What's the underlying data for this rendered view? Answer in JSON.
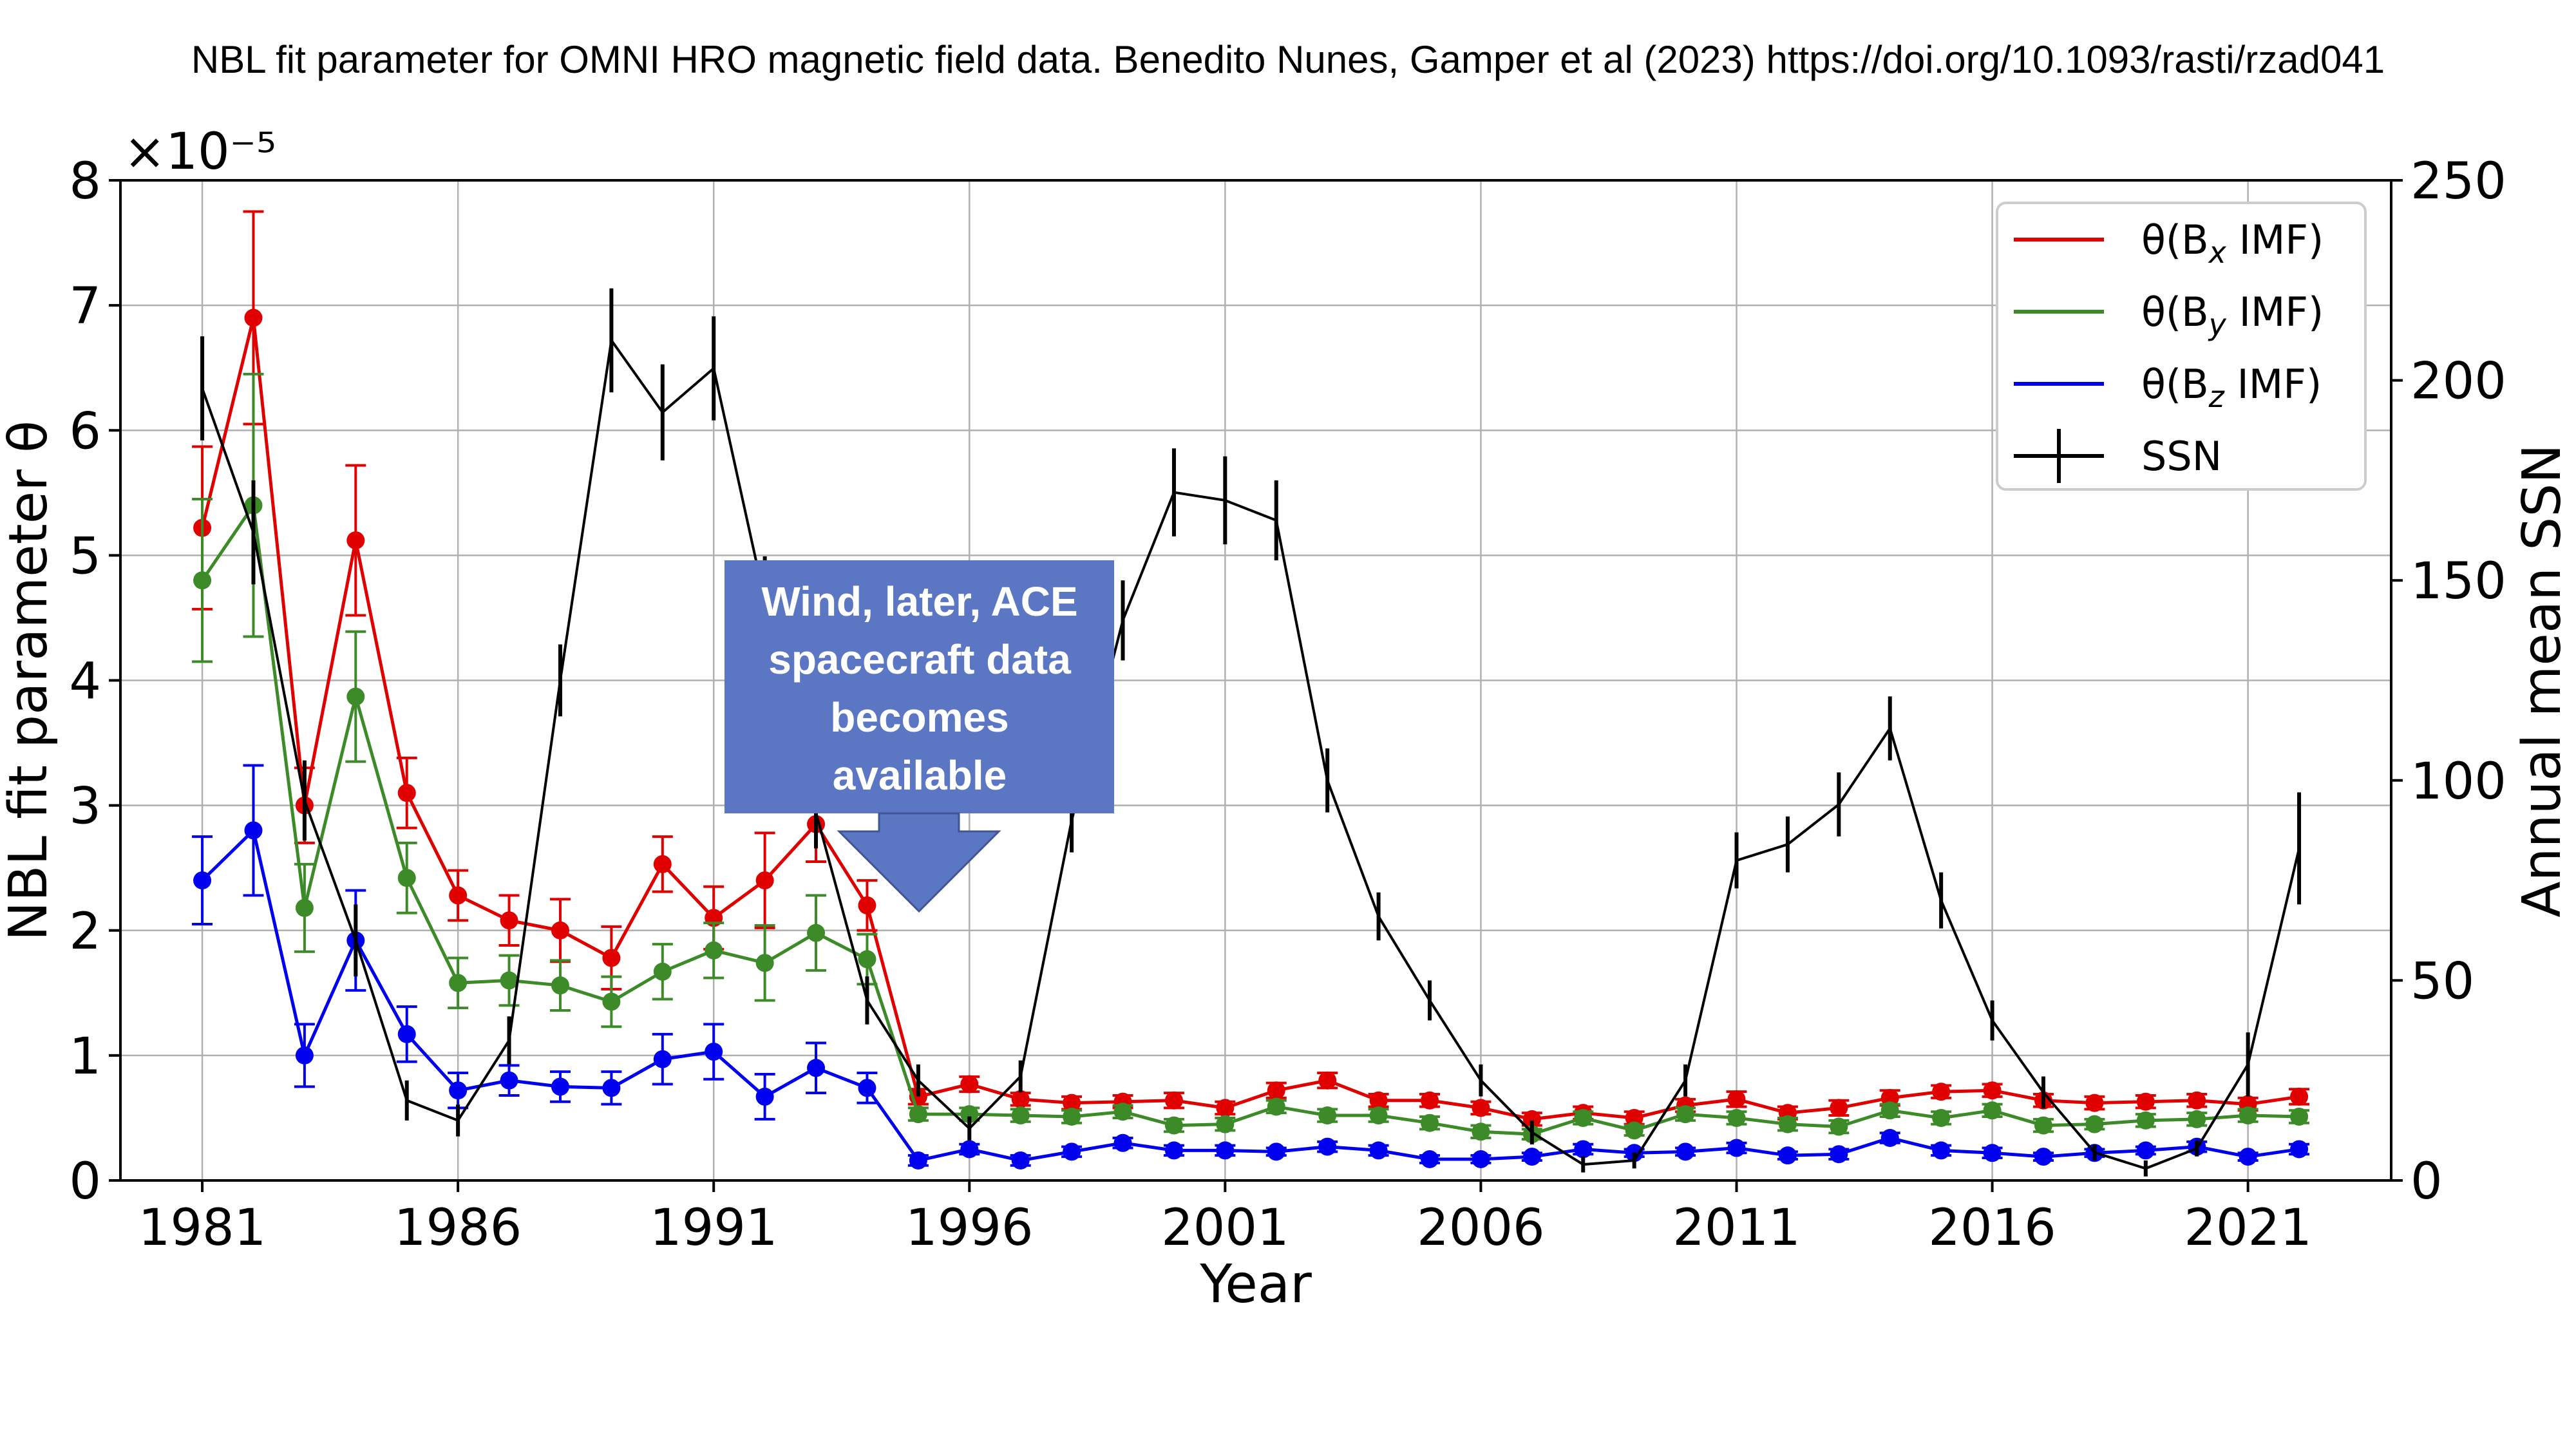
{
  "page_title": "NBL fit parameter for OMNI HRO magnetic field data. Benedito Nunes,  Gamper et al (2023) https://doi.org/10.1093/rasti/rzad041",
  "chart_data": {
    "type": "line",
    "xlabel": "Year",
    "ylabel": "NBL fit parameter θ",
    "y2label": "Annual mean SSN",
    "y_multiplier": "×10⁻⁵",
    "xlim": [
      1979.4,
      2023.8
    ],
    "ylim": [
      0,
      8
    ],
    "y2lim": [
      0,
      250
    ],
    "xticks": [
      1981,
      1986,
      1991,
      1996,
      2001,
      2006,
      2011,
      2016,
      2021
    ],
    "xtick_labels": [
      "1981",
      "1986",
      "1991",
      "1996",
      "2001",
      "2006",
      "2011",
      "2016",
      "2021"
    ],
    "yticks": [
      0,
      1,
      2,
      3,
      4,
      5,
      6,
      7,
      8
    ],
    "ytick_labels": [
      "0",
      "1",
      "2",
      "3",
      "4",
      "5",
      "6",
      "7",
      "8"
    ],
    "y2ticks": [
      0,
      50,
      100,
      150,
      200,
      250
    ],
    "y2tick_labels": [
      "0",
      "50",
      "100",
      "150",
      "200",
      "250"
    ],
    "grid": true,
    "legend_position": "top-right",
    "x": [
      1981,
      1982,
      1983,
      1984,
      1985,
      1986,
      1987,
      1988,
      1989,
      1990,
      1991,
      1992,
      1993,
      1994,
      1995,
      1996,
      1997,
      1998,
      1999,
      2000,
      2001,
      2002,
      2003,
      2004,
      2005,
      2006,
      2007,
      2008,
      2009,
      2010,
      2011,
      2012,
      2013,
      2014,
      2015,
      2016,
      2017,
      2018,
      2019,
      2020,
      2021,
      2022
    ],
    "series": [
      {
        "name": "θ(Bx IMF)",
        "legend_label": "θ(B",
        "legend_sub": "x",
        "legend_suffix": " IMF)",
        "color": "#e00000",
        "axis": "left",
        "values": [
          5.22,
          6.9,
          3.0,
          5.12,
          3.1,
          2.28,
          2.08,
          2.0,
          1.78,
          2.53,
          2.1,
          2.4,
          2.85,
          2.2,
          0.67,
          0.77,
          0.65,
          0.62,
          0.63,
          0.64,
          0.58,
          0.72,
          0.8,
          0.64,
          0.64,
          0.58,
          0.49,
          0.54,
          0.5,
          0.6,
          0.65,
          0.54,
          0.58,
          0.66,
          0.71,
          0.72,
          0.64,
          0.62,
          0.63,
          0.64,
          0.61,
          0.67
        ],
        "errors": [
          0.65,
          0.85,
          0.3,
          0.6,
          0.28,
          0.2,
          0.2,
          0.25,
          0.25,
          0.22,
          0.25,
          0.38,
          0.3,
          0.2,
          0.06,
          0.06,
          0.05,
          0.05,
          0.05,
          0.06,
          0.05,
          0.06,
          0.06,
          0.05,
          0.05,
          0.05,
          0.05,
          0.05,
          0.05,
          0.05,
          0.06,
          0.05,
          0.06,
          0.06,
          0.05,
          0.05,
          0.05,
          0.05,
          0.05,
          0.05,
          0.05,
          0.06
        ]
      },
      {
        "name": "θ(By IMF)",
        "legend_label": "θ(B",
        "legend_sub": "y",
        "legend_suffix": " IMF)",
        "color": "#3c8a28",
        "axis": "left",
        "values": [
          4.8,
          5.4,
          2.18,
          3.87,
          2.42,
          1.58,
          1.6,
          1.56,
          1.43,
          1.67,
          1.84,
          1.74,
          1.98,
          1.77,
          0.53,
          0.53,
          0.52,
          0.51,
          0.55,
          0.44,
          0.45,
          0.59,
          0.52,
          0.52,
          0.46,
          0.39,
          0.37,
          0.5,
          0.4,
          0.53,
          0.5,
          0.45,
          0.43,
          0.56,
          0.5,
          0.56,
          0.44,
          0.45,
          0.48,
          0.49,
          0.52,
          0.51
        ],
        "errors": [
          0.65,
          1.05,
          0.35,
          0.52,
          0.28,
          0.2,
          0.2,
          0.2,
          0.2,
          0.22,
          0.22,
          0.3,
          0.3,
          0.2,
          0.05,
          0.05,
          0.05,
          0.05,
          0.05,
          0.05,
          0.05,
          0.05,
          0.05,
          0.05,
          0.05,
          0.05,
          0.04,
          0.05,
          0.04,
          0.05,
          0.05,
          0.05,
          0.05,
          0.05,
          0.05,
          0.05,
          0.05,
          0.04,
          0.05,
          0.05,
          0.05,
          0.05
        ]
      },
      {
        "name": "θ(Bz IMF)",
        "legend_label": "θ(B",
        "legend_sub": "z",
        "legend_suffix": " IMF)",
        "color": "#0000ee",
        "axis": "left",
        "values": [
          2.4,
          2.8,
          1.0,
          1.92,
          1.17,
          0.72,
          0.8,
          0.75,
          0.74,
          0.97,
          1.03,
          0.67,
          0.9,
          0.74,
          0.16,
          0.25,
          0.16,
          0.23,
          0.3,
          0.24,
          0.24,
          0.23,
          0.27,
          0.24,
          0.17,
          0.17,
          0.19,
          0.25,
          0.22,
          0.23,
          0.26,
          0.2,
          0.21,
          0.34,
          0.24,
          0.22,
          0.19,
          0.22,
          0.24,
          0.27,
          0.19,
          0.25
        ],
        "errors": [
          0.35,
          0.52,
          0.25,
          0.4,
          0.22,
          0.14,
          0.12,
          0.12,
          0.13,
          0.2,
          0.22,
          0.18,
          0.2,
          0.12,
          0.04,
          0.04,
          0.04,
          0.04,
          0.04,
          0.04,
          0.04,
          0.03,
          0.04,
          0.04,
          0.03,
          0.03,
          0.03,
          0.04,
          0.03,
          0.03,
          0.04,
          0.03,
          0.04,
          0.04,
          0.04,
          0.04,
          0.03,
          0.03,
          0.03,
          0.04,
          0.03,
          0.04
        ]
      },
      {
        "name": "SSN",
        "legend_label": "SSN",
        "legend_sub": "",
        "legend_suffix": "",
        "color": "#000000",
        "axis": "right",
        "markers": false,
        "values": [
          198,
          162,
          95,
          60,
          20,
          15,
          35,
          125,
          210,
          192,
          203,
          145,
          92,
          45,
          25,
          13,
          26,
          90,
          140,
          172,
          170,
          165,
          100,
          66,
          45,
          25,
          12,
          4,
          5,
          25,
          80,
          84,
          94,
          113,
          70,
          40,
          22,
          7,
          3,
          8,
          29,
          83
        ],
        "errors": [
          13,
          13,
          10,
          9,
          5,
          4,
          6,
          9,
          13,
          12,
          13,
          11,
          9,
          6,
          4,
          3,
          4,
          8,
          10,
          11,
          11,
          10,
          8,
          6,
          5,
          4,
          3,
          2,
          2,
          4,
          7,
          7,
          8,
          8,
          7,
          5,
          4,
          2,
          2,
          2,
          8,
          14
        ]
      }
    ],
    "annotation": {
      "lines": [
        "Wind, later, ACE",
        "spacecraft data",
        "becomes",
        "available"
      ],
      "box_color": "#5b76c2",
      "arrow_points_to_year": 1995
    }
  }
}
